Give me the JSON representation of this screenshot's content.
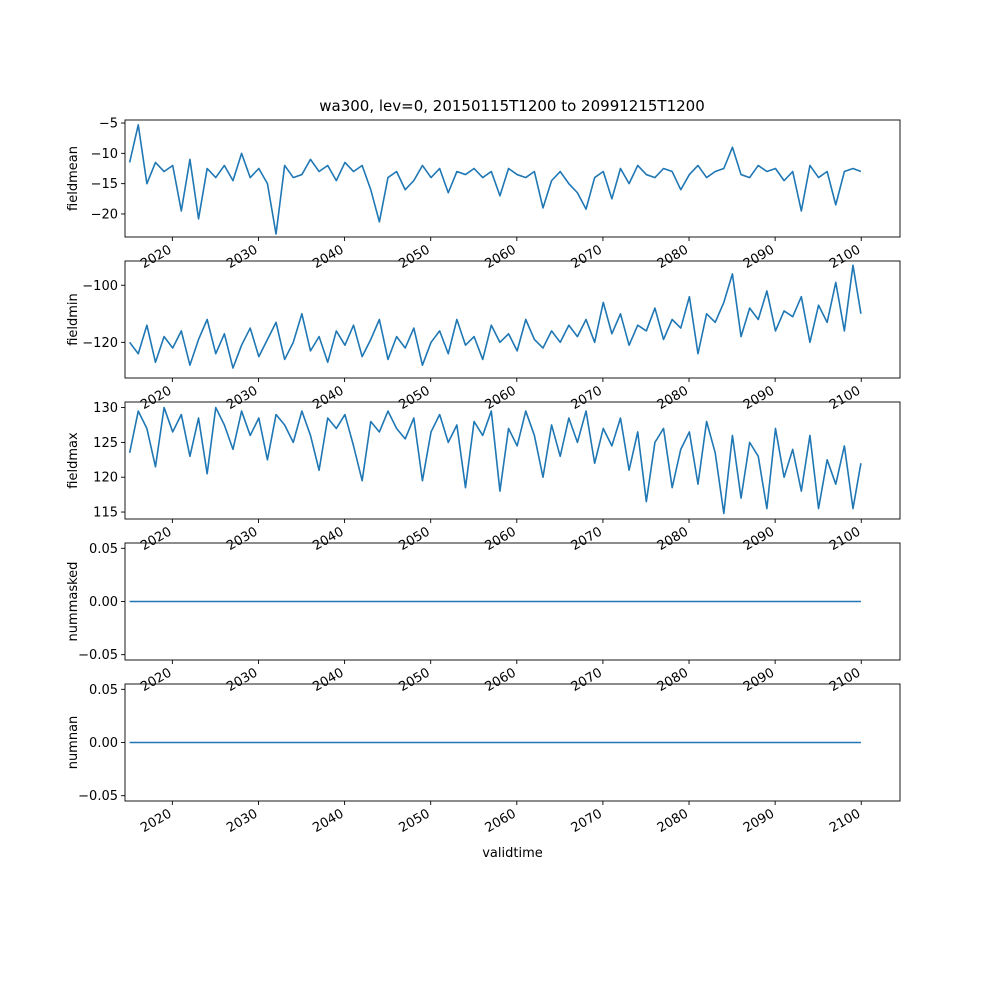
{
  "figure_title": "wa300, lev=0, 20150115T1200 to 20991215T1200",
  "chart_data": [
    {
      "type": "line",
      "ylabel": "fieldmean",
      "xlim": [
        2014.5,
        2104.5
      ],
      "ylim": [
        -23.8,
        -4.5
      ],
      "x_ticks": [
        2020,
        2030,
        2040,
        2050,
        2060,
        2070,
        2080,
        2090,
        2100
      ],
      "x_tick_labels": [
        "2020",
        "2030",
        "2040",
        "2050",
        "2060",
        "2070",
        "2080",
        "2090",
        "2100"
      ],
      "y_ticks": [
        -5,
        -10,
        -15,
        -20
      ],
      "y_tick_labels": [
        "−5",
        "−10",
        "−15",
        "−20"
      ],
      "color": "#1f77b4",
      "series": [
        {
          "x": [
            2015.04,
            2016.04,
            2017.04,
            2018.04,
            2019.04,
            2020.04,
            2021.04,
            2022.04,
            2023.04,
            2024.04,
            2025.04,
            2026.04,
            2027.04,
            2028.04,
            2029.04,
            2030.04,
            2031.04,
            2032.04,
            2033.04,
            2034.04,
            2035.04,
            2036.04,
            2037.04,
            2038.04,
            2039.04,
            2040.04,
            2041.04,
            2042.04,
            2043.04,
            2044.04,
            2045.04,
            2046.04,
            2047.04,
            2048.04,
            2049.04,
            2050.04,
            2051.04,
            2052.04,
            2053.04,
            2054.04,
            2055.04,
            2056.04,
            2057.04,
            2058.04,
            2059.04,
            2060.04,
            2061.04,
            2062.04,
            2063.04,
            2064.04,
            2065.04,
            2066.04,
            2067.04,
            2068.04,
            2069.04,
            2070.04,
            2071.04,
            2072.04,
            2073.04,
            2074.04,
            2075.04,
            2076.04,
            2077.04,
            2078.04,
            2079.04,
            2080.04,
            2081.04,
            2082.04,
            2083.04,
            2084.04,
            2085.04,
            2086.04,
            2087.04,
            2088.04,
            2089.04,
            2090.04,
            2091.04,
            2092.04,
            2093.04,
            2094.04,
            2095.04,
            2096.04,
            2097.04,
            2098.04,
            2099.04,
            2099.96
          ],
          "y": [
            -11.5,
            -5.3,
            -15.0,
            -11.5,
            -13.0,
            -12.0,
            -19.5,
            -11.0,
            -20.8,
            -12.5,
            -14.0,
            -12.0,
            -14.5,
            -10.0,
            -14.0,
            -12.5,
            -15.0,
            -23.3,
            -12.0,
            -14.0,
            -13.5,
            -11.0,
            -13.0,
            -12.0,
            -14.5,
            -11.5,
            -13.0,
            -12.0,
            -16.0,
            -21.3,
            -14.0,
            -13.0,
            -16.0,
            -14.5,
            -12.0,
            -14.0,
            -12.5,
            -16.5,
            -13.0,
            -13.5,
            -12.5,
            -14.0,
            -13.0,
            -17.0,
            -12.5,
            -13.5,
            -14.0,
            -13.0,
            -19.0,
            -14.5,
            -13.0,
            -15.0,
            -16.5,
            -19.2,
            -14.0,
            -13.0,
            -17.5,
            -12.5,
            -15.0,
            -12.0,
            -13.5,
            -14.0,
            -12.5,
            -13.0,
            -16.0,
            -13.5,
            -12.0,
            -14.0,
            -13.0,
            -12.5,
            -9.0,
            -13.5,
            -14.0,
            -12.0,
            -13.0,
            -12.5,
            -14.5,
            -13.0,
            -19.5,
            -12.0,
            -14.0,
            -13.0,
            -18.5,
            -13.0,
            -12.5,
            -13.0
          ]
        }
      ]
    },
    {
      "type": "line",
      "ylabel": "fieldmin",
      "xlim": [
        2014.5,
        2104.5
      ],
      "ylim": [
        -132.5,
        -91.5
      ],
      "x_ticks": [
        2020,
        2030,
        2040,
        2050,
        2060,
        2070,
        2080,
        2090,
        2100
      ],
      "x_tick_labels": [
        "2020",
        "2030",
        "2040",
        "2050",
        "2060",
        "2070",
        "2080",
        "2090",
        "2100"
      ],
      "y_ticks": [
        -100,
        -120
      ],
      "y_tick_labels": [
        "−100",
        "−120"
      ],
      "color": "#1f77b4",
      "series": [
        {
          "x": [
            2015.04,
            2016.04,
            2017.04,
            2018.04,
            2019.04,
            2020.04,
            2021.04,
            2022.04,
            2023.04,
            2024.04,
            2025.04,
            2026.04,
            2027.04,
            2028.04,
            2029.04,
            2030.04,
            2031.04,
            2032.04,
            2033.04,
            2034.04,
            2035.04,
            2036.04,
            2037.04,
            2038.04,
            2039.04,
            2040.04,
            2041.04,
            2042.04,
            2043.04,
            2044.04,
            2045.04,
            2046.04,
            2047.04,
            2048.04,
            2049.04,
            2050.04,
            2051.04,
            2052.04,
            2053.04,
            2054.04,
            2055.04,
            2056.04,
            2057.04,
            2058.04,
            2059.04,
            2060.04,
            2061.04,
            2062.04,
            2063.04,
            2064.04,
            2065.04,
            2066.04,
            2067.04,
            2068.04,
            2069.04,
            2070.04,
            2071.04,
            2072.04,
            2073.04,
            2074.04,
            2075.04,
            2076.04,
            2077.04,
            2078.04,
            2079.04,
            2080.04,
            2081.04,
            2082.04,
            2083.04,
            2084.04,
            2085.04,
            2086.04,
            2087.04,
            2088.04,
            2089.04,
            2090.04,
            2091.04,
            2092.04,
            2093.04,
            2094.04,
            2095.04,
            2096.04,
            2097.04,
            2098.04,
            2099.04,
            2099.96
          ],
          "y": [
            -120,
            -124,
            -114,
            -127,
            -118,
            -122,
            -116,
            -128,
            -119,
            -112,
            -124,
            -117,
            -129,
            -121,
            -115,
            -125,
            -119,
            -113,
            -126,
            -120,
            -110,
            -123,
            -118,
            -127,
            -116,
            -121,
            -114,
            -125,
            -119,
            -112,
            -126,
            -118,
            -122,
            -115,
            -128,
            -120,
            -116,
            -124,
            -112,
            -121,
            -118,
            -126,
            -114,
            -120,
            -117,
            -123,
            -112,
            -119,
            -122,
            -116,
            -120,
            -114,
            -118,
            -112,
            -120,
            -106,
            -117,
            -110,
            -121,
            -114,
            -116,
            -108,
            -119,
            -112,
            -115,
            -104,
            -124,
            -110,
            -113,
            -106,
            -96,
            -118,
            -108,
            -112,
            -102,
            -116,
            -109,
            -111,
            -104,
            -120,
            -107,
            -113,
            -99,
            -116,
            -93,
            -110
          ]
        }
      ]
    },
    {
      "type": "line",
      "ylabel": "fieldmax",
      "xlim": [
        2014.5,
        2104.5
      ],
      "ylim": [
        114.0,
        130.8
      ],
      "x_ticks": [
        2020,
        2030,
        2040,
        2050,
        2060,
        2070,
        2080,
        2090,
        2100
      ],
      "x_tick_labels": [
        "2020",
        "2030",
        "2040",
        "2050",
        "2060",
        "2070",
        "2080",
        "2090",
        "2100"
      ],
      "y_ticks": [
        115,
        120,
        125,
        130
      ],
      "y_tick_labels": [
        "115",
        "120",
        "125",
        "130"
      ],
      "color": "#1f77b4",
      "series": [
        {
          "x": [
            2015.04,
            2016.04,
            2017.04,
            2018.04,
            2019.04,
            2020.04,
            2021.04,
            2022.04,
            2023.04,
            2024.04,
            2025.04,
            2026.04,
            2027.04,
            2028.04,
            2029.04,
            2030.04,
            2031.04,
            2032.04,
            2033.04,
            2034.04,
            2035.04,
            2036.04,
            2037.04,
            2038.04,
            2039.04,
            2040.04,
            2041.04,
            2042.04,
            2043.04,
            2044.04,
            2045.04,
            2046.04,
            2047.04,
            2048.04,
            2049.04,
            2050.04,
            2051.04,
            2052.04,
            2053.04,
            2054.04,
            2055.04,
            2056.04,
            2057.04,
            2058.04,
            2059.04,
            2060.04,
            2061.04,
            2062.04,
            2063.04,
            2064.04,
            2065.04,
            2066.04,
            2067.04,
            2068.04,
            2069.04,
            2070.04,
            2071.04,
            2072.04,
            2073.04,
            2074.04,
            2075.04,
            2076.04,
            2077.04,
            2078.04,
            2079.04,
            2080.04,
            2081.04,
            2082.04,
            2083.04,
            2084.04,
            2085.04,
            2086.04,
            2087.04,
            2088.04,
            2089.04,
            2090.04,
            2091.04,
            2092.04,
            2093.04,
            2094.04,
            2095.04,
            2096.04,
            2097.04,
            2098.04,
            2099.04,
            2099.96
          ],
          "y": [
            123.5,
            129.5,
            127.0,
            121.5,
            130.0,
            126.5,
            129.0,
            123.0,
            128.5,
            120.5,
            130.0,
            127.5,
            124.0,
            129.5,
            126.0,
            128.5,
            122.5,
            129.0,
            127.5,
            125.0,
            129.5,
            126.0,
            121.0,
            128.5,
            127.0,
            129.0,
            124.5,
            119.5,
            128.0,
            126.5,
            129.5,
            127.0,
            125.5,
            128.5,
            119.5,
            126.5,
            129.0,
            125.0,
            127.5,
            118.5,
            128.0,
            126.0,
            129.5,
            118.0,
            127.0,
            124.5,
            129.5,
            126.0,
            120.0,
            127.5,
            123.0,
            128.5,
            125.0,
            129.5,
            122.0,
            127.0,
            124.5,
            128.5,
            121.0,
            126.5,
            116.5,
            125.0,
            127.0,
            118.5,
            124.0,
            126.5,
            119.0,
            128.0,
            123.5,
            114.8,
            126.0,
            117.0,
            125.0,
            123.0,
            115.5,
            127.0,
            120.0,
            124.0,
            118.0,
            126.0,
            115.5,
            122.5,
            119.0,
            124.5,
            115.5,
            122.0
          ]
        }
      ]
    },
    {
      "type": "line",
      "ylabel": "nummasked",
      "xlim": [
        2014.5,
        2104.5
      ],
      "ylim": [
        -0.055,
        0.055
      ],
      "x_ticks": [
        2020,
        2030,
        2040,
        2050,
        2060,
        2070,
        2080,
        2090,
        2100
      ],
      "x_tick_labels": [
        "2020",
        "2030",
        "2040",
        "2050",
        "2060",
        "2070",
        "2080",
        "2090",
        "2100"
      ],
      "y_ticks": [
        0.05,
        0.0,
        -0.05
      ],
      "y_tick_labels": [
        "0.05",
        "0.00",
        "−0.05"
      ],
      "color": "#1f77b4",
      "series": [
        {
          "x": [
            2015.04,
            2099.96
          ],
          "y": [
            0,
            0
          ]
        }
      ]
    },
    {
      "type": "line",
      "ylabel": "numnan",
      "xlabel": "validtime",
      "xlim": [
        2014.5,
        2104.5
      ],
      "ylim": [
        -0.055,
        0.055
      ],
      "x_ticks": [
        2020,
        2030,
        2040,
        2050,
        2060,
        2070,
        2080,
        2090,
        2100
      ],
      "x_tick_labels": [
        "2020",
        "2030",
        "2040",
        "2050",
        "2060",
        "2070",
        "2080",
        "2090",
        "2100"
      ],
      "y_ticks": [
        0.05,
        0.0,
        -0.05
      ],
      "y_tick_labels": [
        "0.05",
        "0.00",
        "−0.05"
      ],
      "color": "#1f77b4",
      "series": [
        {
          "x": [
            2015.04,
            2099.96
          ],
          "y": [
            0,
            0
          ]
        }
      ]
    }
  ]
}
